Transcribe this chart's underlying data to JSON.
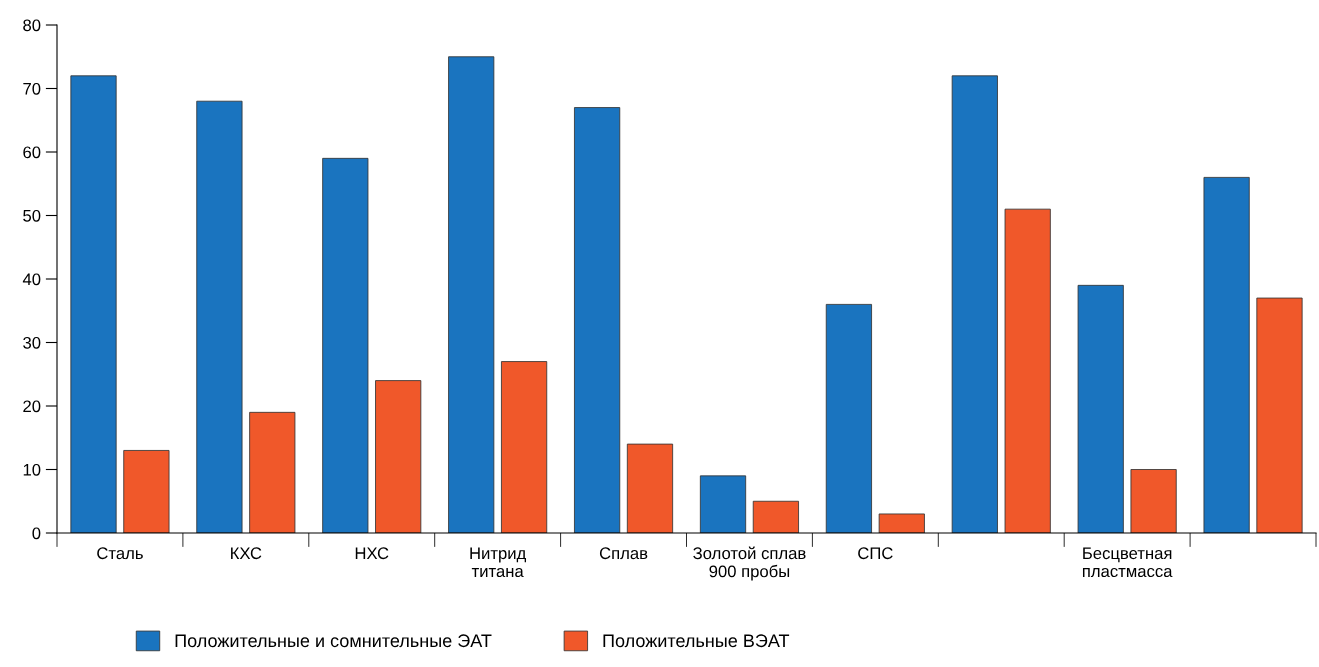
{
  "chart_data": {
    "type": "bar",
    "categories": [
      "Сталь",
      "КХС",
      "НХС",
      "Нитрид\nтитана",
      "Сплав",
      "Золотой сплав\n900 пробы",
      "СПС",
      null,
      "Бесцветная\nпластмасса",
      null
    ],
    "series": [
      {
        "name": "Положительные и сомнительные ЭАТ",
        "color": "#1a74bf",
        "values": [
          72,
          68,
          59,
          75,
          67,
          9,
          36,
          72,
          39,
          56
        ]
      },
      {
        "name": "Положительные ВЭАТ",
        "color": "#f0582a",
        "values": [
          13,
          19,
          24,
          27,
          14,
          5,
          3,
          51,
          10,
          37
        ]
      }
    ],
    "ylim": [
      0,
      80
    ],
    "yticks": [
      0,
      10,
      20,
      30,
      40,
      50,
      60,
      70,
      80
    ],
    "grid": false,
    "legend": "bottom"
  }
}
